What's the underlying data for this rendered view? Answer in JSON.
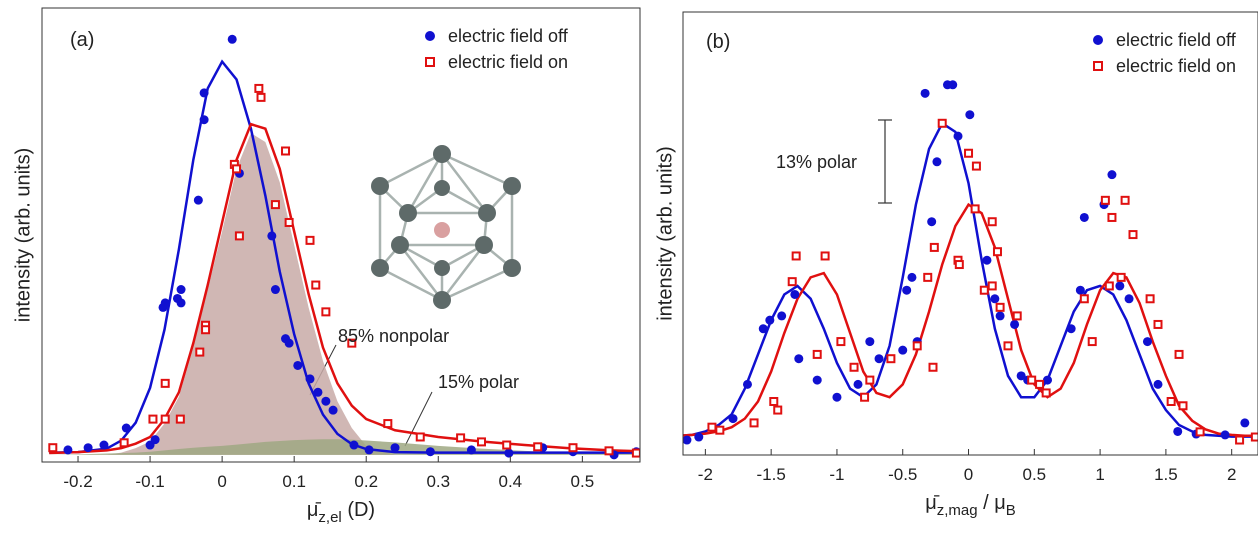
{
  "chart_data": [
    {
      "type": "scatter",
      "title": "(a)",
      "x_label": [
        {
          "text": "μ̄"
        },
        {
          "text": "z,el",
          "sub": true
        },
        {
          "text": " (D)"
        }
      ],
      "y_label": "intensity (arb. units)",
      "xlim": [
        -0.25,
        0.58
      ],
      "ylim": [
        -0.016,
        1.0
      ],
      "xticks": [
        -0.2,
        -0.1,
        0,
        0.1,
        0.2,
        0.3,
        0.4,
        0.5
      ],
      "legend": "upper right",
      "annotations": [
        "85% nonpolar",
        "15% polar"
      ],
      "series": [
        {
          "style": "area",
          "color": "#c8aaa7",
          "x": [
            -0.24,
            -0.2,
            -0.16,
            -0.14,
            -0.12,
            -0.1,
            -0.08,
            -0.06,
            -0.04,
            -0.02,
            0,
            0.02,
            0.04,
            0.06,
            0.08,
            0.1,
            0.12,
            0.14,
            0.16,
            0.18,
            0.2,
            0.24,
            0.3,
            0.36,
            0.42,
            0.48,
            0.54,
            0.58
          ],
          "values": [
            0,
            0,
            0,
            0.005,
            0.015,
            0.03,
            0.07,
            0.13,
            0.24,
            0.37,
            0.5,
            0.64,
            0.72,
            0.7,
            0.61,
            0.47,
            0.33,
            0.21,
            0.12,
            0.06,
            0.02,
            0,
            0,
            0,
            0,
            0,
            0,
            0
          ]
        },
        {
          "style": "area",
          "color": "#9fa883",
          "x": [
            -0.24,
            -0.2,
            -0.16,
            -0.14,
            -0.12,
            -0.1,
            -0.08,
            -0.06,
            -0.04,
            -0.02,
            0,
            0.02,
            0.04,
            0.06,
            0.08,
            0.1,
            0.12,
            0.14,
            0.16,
            0.18,
            0.2,
            0.24,
            0.3,
            0.36,
            0.42,
            0.48,
            0.54,
            0.58
          ],
          "values": [
            0,
            0.001,
            0.003,
            0.004,
            0.005,
            0.007,
            0.01,
            0.013,
            0.016,
            0.018,
            0.02,
            0.023,
            0.026,
            0.029,
            0.031,
            0.033,
            0.034,
            0.035,
            0.035,
            0.034,
            0.032,
            0.028,
            0.02,
            0.014,
            0.009,
            0.005,
            0.003,
            0.002
          ]
        },
        {
          "style": "line",
          "color": "#1010d0",
          "x": [
            -0.24,
            -0.2,
            -0.16,
            -0.14,
            -0.12,
            -0.1,
            -0.08,
            -0.06,
            -0.04,
            -0.02,
            0,
            0.02,
            0.04,
            0.06,
            0.08,
            0.1,
            0.12,
            0.14,
            0.16,
            0.18,
            0.2,
            0.24,
            0.3,
            0.36,
            0.42,
            0.48,
            0.54,
            0.58
          ],
          "values": [
            0.005,
            0.006,
            0.014,
            0.032,
            0.072,
            0.15,
            0.28,
            0.46,
            0.66,
            0.82,
            0.88,
            0.84,
            0.73,
            0.58,
            0.41,
            0.27,
            0.16,
            0.09,
            0.047,
            0.024,
            0.013,
            0.006,
            0.005,
            0.005,
            0.005,
            0.005,
            0.005,
            0.005
          ]
        },
        {
          "style": "line",
          "color": "#e01010",
          "x": [
            -0.24,
            -0.2,
            -0.16,
            -0.14,
            -0.12,
            -0.1,
            -0.08,
            -0.06,
            -0.04,
            -0.02,
            0,
            0.02,
            0.04,
            0.06,
            0.08,
            0.1,
            0.12,
            0.14,
            0.16,
            0.18,
            0.2,
            0.24,
            0.3,
            0.36,
            0.42,
            0.48,
            0.54,
            0.58
          ],
          "values": [
            0.004,
            0.006,
            0.01,
            0.015,
            0.025,
            0.04,
            0.08,
            0.14,
            0.25,
            0.38,
            0.52,
            0.66,
            0.74,
            0.73,
            0.64,
            0.5,
            0.36,
            0.24,
            0.16,
            0.11,
            0.08,
            0.055,
            0.04,
            0.03,
            0.022,
            0.015,
            0.01,
            0.008
          ]
        },
        {
          "name": "electric field off",
          "marker": "circle",
          "color": "#1010d0",
          "x": [
            0.014,
            -0.025,
            -0.025,
            -0.033,
            0.024,
            -0.057,
            -0.062,
            -0.057,
            -0.079,
            -0.082,
            0.069,
            0.074,
            0.088,
            0.093,
            0.105,
            0.122,
            0.133,
            0.144,
            0.154,
            -0.1,
            -0.133,
            -0.164,
            -0.093,
            0.183,
            0.204,
            0.24,
            0.289,
            0.346,
            0.398,
            0.445,
            0.487,
            0.544,
            0.575,
            -0.214,
            -0.186
          ],
          "values": [
            0.93,
            0.81,
            0.75,
            0.57,
            0.63,
            0.37,
            0.35,
            0.34,
            0.34,
            0.33,
            0.49,
            0.37,
            0.26,
            0.25,
            0.2,
            0.17,
            0.14,
            0.12,
            0.1,
            0.022,
            0.06,
            0.022,
            0.034,
            0.022,
            0.011,
            0.016,
            0.007,
            0.011,
            0.004,
            0.016,
            0.007,
            0,
            0.007,
            0.011,
            0.016
          ]
        },
        {
          "name": "electric field on",
          "marker": "square",
          "color": "#e01010",
          "x": [
            0.051,
            0.054,
            0.017,
            0.02,
            0.088,
            0.024,
            0.074,
            0.093,
            0.122,
            0.13,
            -0.023,
            -0.023,
            -0.031,
            0.144,
            0.18,
            0.23,
            0.275,
            -0.079,
            -0.096,
            -0.079,
            -0.058,
            -0.136,
            -0.235,
            0.331,
            0.36,
            0.395,
            0.438,
            0.487,
            0.537,
            0.575
          ],
          "values": [
            0.82,
            0.8,
            0.65,
            0.64,
            0.68,
            0.49,
            0.56,
            0.52,
            0.48,
            0.38,
            0.29,
            0.28,
            0.23,
            0.32,
            0.25,
            0.07,
            0.04,
            0.16,
            0.08,
            0.08,
            0.08,
            0.027,
            0.016,
            0.038,
            0.029,
            0.022,
            0.018,
            0.016,
            0.009,
            0.004
          ]
        }
      ]
    },
    {
      "type": "scatter",
      "title": "(b)",
      "x_label": [
        {
          "text": "μ̄"
        },
        {
          "text": "z,mag",
          "sub": true
        },
        {
          "text": " / μ"
        },
        {
          "text": "B",
          "sub": true
        }
      ],
      "y_label": "intensity (arb. units)",
      "xlim": [
        -2.17,
        2.2
      ],
      "ylim": [
        -0.035,
        1.0
      ],
      "xticks": [
        -2,
        -1.5,
        -1,
        -0.5,
        0,
        0.5,
        1,
        1.5,
        2
      ],
      "legend": "upper right",
      "annotations": [
        "13% polar"
      ],
      "series": [
        {
          "style": "line",
          "color": "#1010d0",
          "x": [
            -2.2,
            -2.1,
            -2.0,
            -1.9,
            -1.8,
            -1.7,
            -1.6,
            -1.5,
            -1.4,
            -1.3,
            -1.2,
            -1.1,
            -1.0,
            -0.9,
            -0.8,
            -0.7,
            -0.6,
            -0.5,
            -0.4,
            -0.3,
            -0.2,
            -0.1,
            0,
            0.1,
            0.2,
            0.3,
            0.4,
            0.5,
            0.6,
            0.7,
            0.8,
            0.9,
            1.0,
            1.1,
            1.2,
            1.3,
            1.4,
            1.5,
            1.6,
            1.7,
            1.8,
            1.9,
            2.0,
            2.1,
            2.2
          ],
          "values": [
            0.01,
            0.012,
            0.02,
            0.035,
            0.06,
            0.12,
            0.2,
            0.28,
            0.34,
            0.36,
            0.33,
            0.26,
            0.18,
            0.12,
            0.1,
            0.13,
            0.22,
            0.38,
            0.55,
            0.68,
            0.74,
            0.72,
            0.6,
            0.42,
            0.26,
            0.15,
            0.1,
            0.1,
            0.14,
            0.22,
            0.3,
            0.35,
            0.36,
            0.34,
            0.28,
            0.2,
            0.12,
            0.07,
            0.035,
            0.02,
            0.012,
            0.01,
            0.008,
            0.008,
            0.008
          ]
        },
        {
          "style": "line",
          "color": "#e01010",
          "x": [
            -2.2,
            -2.1,
            -2.0,
            -1.9,
            -1.8,
            -1.7,
            -1.6,
            -1.5,
            -1.4,
            -1.3,
            -1.2,
            -1.1,
            -1.0,
            -0.9,
            -0.8,
            -0.7,
            -0.6,
            -0.5,
            -0.4,
            -0.3,
            -0.2,
            -0.1,
            0,
            0.1,
            0.2,
            0.3,
            0.4,
            0.5,
            0.6,
            0.7,
            0.8,
            0.9,
            1.0,
            1.1,
            1.2,
            1.3,
            1.4,
            1.5,
            1.6,
            1.7,
            1.8,
            1.9,
            2.0,
            2.1,
            2.2
          ],
          "values": [
            0.01,
            0.012,
            0.015,
            0.02,
            0.03,
            0.05,
            0.09,
            0.16,
            0.25,
            0.33,
            0.38,
            0.39,
            0.34,
            0.25,
            0.16,
            0.11,
            0.1,
            0.13,
            0.2,
            0.3,
            0.41,
            0.5,
            0.55,
            0.53,
            0.45,
            0.33,
            0.21,
            0.13,
            0.1,
            0.12,
            0.18,
            0.27,
            0.35,
            0.39,
            0.38,
            0.32,
            0.23,
            0.15,
            0.08,
            0.045,
            0.025,
            0.015,
            0.012,
            0.01,
            0.01
          ]
        },
        {
          "name": "electric field off",
          "marker": "circle",
          "color": "#1010d0",
          "x": [
            -0.33,
            -0.16,
            -0.12,
            0.01,
            -0.24,
            -0.08,
            -0.28,
            -0.43,
            -0.47,
            -0.39,
            -0.5,
            -0.68,
            -0.75,
            -0.84,
            -1.0,
            -1.15,
            -1.29,
            -1.32,
            -1.42,
            -1.51,
            -1.56,
            -1.68,
            -1.79,
            -2.05,
            -2.14,
            0.14,
            0.2,
            0.24,
            0.35,
            0.4,
            0.45,
            0.6,
            0.78,
            0.85,
            0.88,
            1.03,
            1.09,
            1.15,
            1.22,
            1.36,
            1.44,
            1.59,
            1.73,
            1.95,
            2.1
          ],
          "values": [
            0.81,
            0.83,
            0.83,
            0.76,
            0.65,
            0.71,
            0.51,
            0.38,
            0.35,
            0.23,
            0.21,
            0.19,
            0.23,
            0.13,
            0.1,
            0.14,
            0.19,
            0.34,
            0.29,
            0.28,
            0.26,
            0.13,
            0.05,
            0.007,
            0,
            0.42,
            0.33,
            0.29,
            0.27,
            0.15,
            0.14,
            0.14,
            0.26,
            0.35,
            0.52,
            0.55,
            0.62,
            0.36,
            0.33,
            0.23,
            0.13,
            0.02,
            0.014,
            0.012,
            0.04
          ]
        },
        {
          "name": "electric field on",
          "marker": "square",
          "color": "#e01010",
          "x": [
            -0.2,
            0,
            0.06,
            0.05,
            -0.26,
            -0.31,
            -0.08,
            -0.07,
            0.18,
            0.22,
            0.18,
            0.12,
            0.24,
            0.37,
            0.3,
            0.48,
            0.54,
            0.59,
            -0.27,
            -0.39,
            -0.59,
            -0.75,
            -0.79,
            -0.87,
            -0.97,
            -1.09,
            -1.15,
            -1.31,
            -1.34,
            -1.48,
            -1.45,
            -1.63,
            -1.89,
            -1.95,
            1.04,
            1.09,
            1.19,
            1.25,
            1.16,
            1.07,
            0.88,
            0.94,
            1.38,
            1.44,
            1.6,
            1.54,
            1.63,
            1.76,
            2.06,
            2.18
          ],
          "values": [
            0.74,
            0.67,
            0.64,
            0.54,
            0.45,
            0.38,
            0.42,
            0.41,
            0.51,
            0.44,
            0.36,
            0.35,
            0.31,
            0.29,
            0.22,
            0.14,
            0.13,
            0.11,
            0.17,
            0.22,
            0.19,
            0.14,
            0.1,
            0.17,
            0.23,
            0.43,
            0.2,
            0.43,
            0.37,
            0.09,
            0.07,
            0.04,
            0.023,
            0.03,
            0.56,
            0.52,
            0.56,
            0.48,
            0.38,
            0.36,
            0.33,
            0.23,
            0.33,
            0.27,
            0.2,
            0.09,
            0.08,
            0.019,
            0,
            0.007
          ]
        }
      ]
    }
  ]
}
